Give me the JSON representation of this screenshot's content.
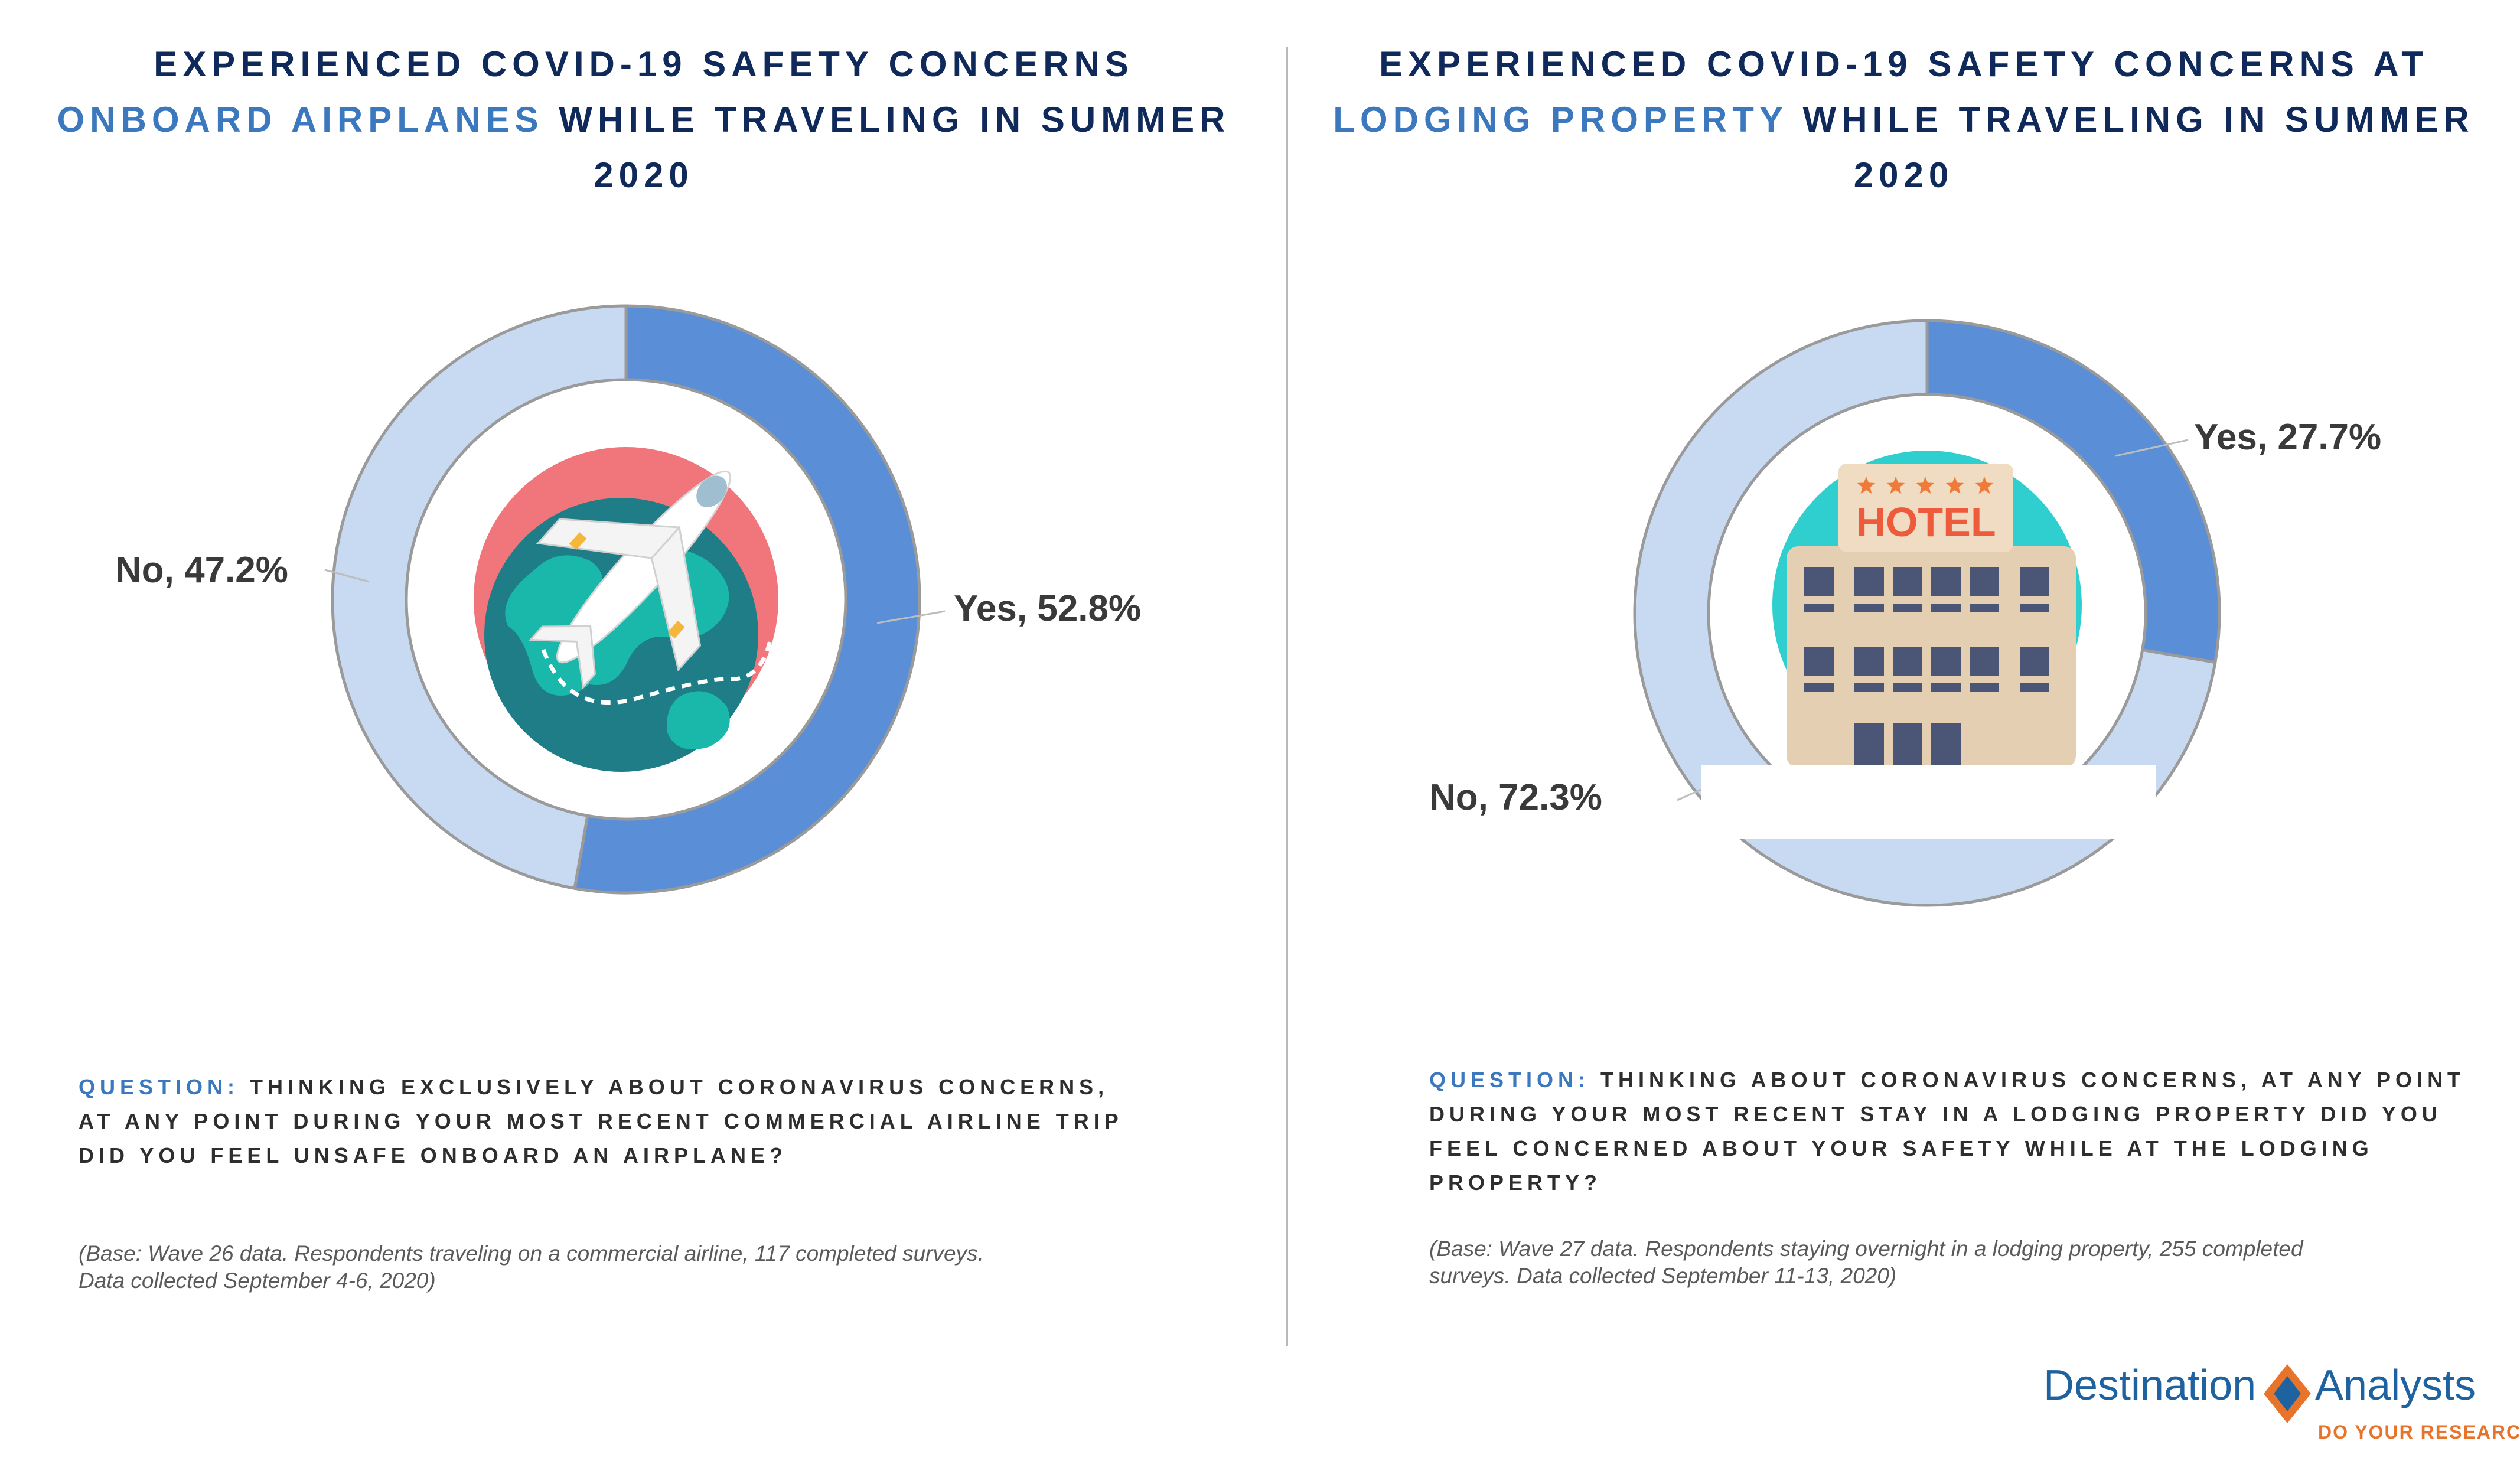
{
  "left": {
    "title_line1": "EXPERIENCED COVID-19 SAFETY CONCERNS",
    "title_highlight": "ONBOARD AIRPLANES",
    "title_rest": " WHILE TRAVELING IN SUMMER 2020",
    "question_label": "QUESTION:",
    "question_text": "THINKING EXCLUSIVELY ABOUT CORONAVIRUS CONCERNS, AT ANY POINT DURING YOUR MOST RECENT COMMERCIAL AIRLINE TRIP DID YOU FEEL UNSAFE ONBOARD AN AIRPLANE?",
    "base_note": "(Base: Wave 26 data. Respondents traveling on a commercial airline, 117 completed surveys. Data collected September 4-6, 2020)",
    "icon": "airplane-globe-icon"
  },
  "right": {
    "title_line1": "EXPERIENCED COVID-19 SAFETY CONCERNS AT",
    "title_highlight": "LODGING PROPERTY",
    "title_rest": " WHILE TRAVELING IN SUMMER 2020",
    "question_label": "QUESTION:",
    "question_text": "THINKING ABOUT CORONAVIRUS CONCERNS, AT ANY POINT DURING YOUR MOST RECENT STAY IN A LODGING PROPERTY DID YOU FEEL CONCERNED ABOUT YOUR SAFETY WHILE AT THE LODGING PROPERTY?",
    "base_note": "(Base: Wave 27 data. Respondents staying overnight in a lodging property, 255 completed surveys. Data collected September 11-13, 2020)",
    "icon": "hotel-building-icon",
    "hotel_sign": "HOTEL"
  },
  "chart_data": [
    {
      "type": "pie",
      "style": "donut",
      "title": "EXPERIENCED COVID-19 SAFETY CONCERNS ONBOARD AIRPLANES WHILE TRAVELING IN SUMMER 2020",
      "slices": [
        {
          "label": "Yes",
          "value": 52.8,
          "display": "Yes, 52.8%",
          "color": "#5a8fd8"
        },
        {
          "label": "No",
          "value": 47.2,
          "display": "No, 47.2%",
          "color": "#c8d9f2"
        }
      ]
    },
    {
      "type": "pie",
      "style": "donut",
      "title": "EXPERIENCED COVID-19 SAFETY CONCERNS AT LODGING PROPERTY WHILE TRAVELING IN SUMMER 2020",
      "slices": [
        {
          "label": "Yes",
          "value": 27.7,
          "display": "Yes, 27.7%",
          "color": "#5a8fd8"
        },
        {
          "label": "No",
          "value": 72.3,
          "display": "No, 72.3%",
          "color": "#c8d9f2"
        }
      ]
    }
  ],
  "logo": {
    "name_part1": "Destination",
    "name_part2": "Analysts",
    "tagline": "DO YOUR RESEARCH",
    "colors": {
      "blue": "#1f62a0",
      "orange": "#e8732a"
    }
  }
}
